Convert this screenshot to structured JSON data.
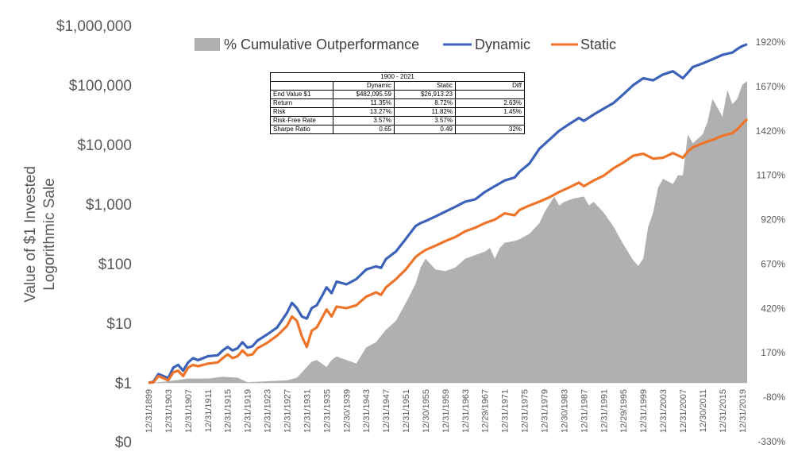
{
  "chart_data": {
    "type": "line",
    "ylabel": [
      "Value of $1 Invested",
      "Logorithmic Sale"
    ],
    "y_scale": "log",
    "ylim": [
      1,
      1000000
    ],
    "y_ticks": [
      "$1",
      "$10",
      "$100",
      "$1,000",
      "$10,000",
      "$100,000",
      "$1,000,000"
    ],
    "y_zero_tick": "$0",
    "y2_ticks": [
      "-330%",
      "-80%",
      "170%",
      "420%",
      "670%",
      "920%",
      "1170%",
      "1420%",
      "1670%",
      "1920%"
    ],
    "y2lim": [
      -330,
      1920
    ],
    "x_ticks": [
      "12/31/1899",
      "12/31/1903",
      "12/31/1907",
      "12/31/1911",
      "12/31/1915",
      "12/31/1919",
      "12/31/1923",
      "12/31/1927",
      "12/31/1931",
      "12/31/1935",
      "12/30/1939",
      "12/31/1943",
      "12/31/1947",
      "12/31/1951",
      "12/30/1955",
      "12/31/1959",
      "12/31/1963",
      "12/29/1967",
      "12/31/1971",
      "12/31/1975",
      "12/31/1979",
      "12/30/1983",
      "12/31/1987",
      "12/31/1991",
      "12/29/1995",
      "12/31/1999",
      "12/31/2003",
      "12/31/2007",
      "12/30/2011",
      "12/31/2015",
      "12/31/2019"
    ],
    "legend": {
      "position": "top"
    },
    "series": [
      {
        "name": "% Cumulative Outperformance",
        "type": "area",
        "axis": "right",
        "color": "#b0b0b0",
        "x": [
          1900,
          1904,
          1908,
          1912,
          1915,
          1918,
          1920,
          1924,
          1928,
          1930,
          1932,
          1933,
          1934,
          1935,
          1936,
          1937,
          1938,
          1940,
          1942,
          1944,
          1946,
          1948,
          1950,
          1952,
          1954,
          1955,
          1956,
          1958,
          1960,
          1962,
          1964,
          1966,
          1968,
          1969,
          1970,
          1971,
          1972,
          1974,
          1975,
          1977,
          1979,
          1980,
          1982,
          1983,
          1984,
          1986,
          1988,
          1989,
          1990,
          1992,
          1994,
          1996,
          1998,
          1999,
          2000,
          2001,
          2002,
          2003,
          2004,
          2006,
          2007,
          2008,
          2009,
          2010,
          2012,
          2013,
          2014,
          2016,
          2017,
          2018,
          2019,
          2020,
          2021
        ],
        "values": [
          0,
          10,
          25,
          25,
          35,
          30,
          5,
          10,
          15,
          30,
          90,
          120,
          130,
          110,
          90,
          130,
          150,
          130,
          110,
          200,
          230,
          300,
          350,
          450,
          560,
          650,
          700,
          640,
          630,
          650,
          700,
          720,
          740,
          760,
          700,
          760,
          790,
          800,
          810,
          840,
          900,
          960,
          1050,
          1000,
          1020,
          1040,
          1050,
          1000,
          1020,
          960,
          880,
          780,
          690,
          660,
          700,
          880,
          960,
          1100,
          1150,
          1120,
          1170,
          1170,
          1400,
          1350,
          1400,
          1470,
          1600,
          1500,
          1650,
          1570,
          1600,
          1680,
          1700
        ]
      },
      {
        "name": "Dynamic",
        "type": "line",
        "axis": "left",
        "color": "#3b62b8",
        "x": [
          1900,
          1901,
          1902,
          1903,
          1904,
          1905,
          1906,
          1907,
          1908,
          1909,
          1910,
          1912,
          1914,
          1915,
          1916,
          1917,
          1918,
          1919,
          1920,
          1921,
          1922,
          1924,
          1926,
          1928,
          1929,
          1930,
          1931,
          1932,
          1933,
          1934,
          1935,
          1936,
          1937,
          1938,
          1940,
          1942,
          1944,
          1946,
          1947,
          1948,
          1950,
          1952,
          1954,
          1955,
          1956,
          1958,
          1960,
          1962,
          1964,
          1966,
          1968,
          1970,
          1972,
          1974,
          1975,
          1977,
          1979,
          1981,
          1983,
          1985,
          1987,
          1988,
          1990,
          1992,
          1994,
          1996,
          1998,
          2000,
          2002,
          2004,
          2006,
          2008,
          2009,
          2010,
          2012,
          2014,
          2016,
          2018,
          2019,
          2020,
          2021
        ],
        "values": [
          1,
          1.05,
          1.4,
          1.3,
          1.2,
          1.8,
          2.0,
          1.6,
          2.2,
          2.6,
          2.4,
          2.8,
          2.9,
          3.5,
          4.0,
          3.5,
          3.8,
          4.8,
          3.9,
          4.1,
          5.1,
          6.5,
          8.5,
          15,
          22,
          18,
          13,
          12,
          18,
          20,
          28,
          40,
          32,
          50,
          45,
          55,
          80,
          90,
          85,
          120,
          160,
          260,
          430,
          480,
          520,
          620,
          750,
          900,
          1100,
          1200,
          1600,
          2000,
          2500,
          2800,
          3500,
          4800,
          8500,
          12000,
          17000,
          22000,
          28000,
          25000,
          32000,
          40000,
          50000,
          70000,
          100000,
          130000,
          120000,
          150000,
          170000,
          130000,
          160000,
          200000,
          230000,
          270000,
          320000,
          350000,
          400000,
          450000,
          482095.59
        ]
      },
      {
        "name": "Static",
        "type": "line",
        "axis": "left",
        "color": "#ed7428",
        "x": [
          1900,
          1901,
          1902,
          1903,
          1904,
          1905,
          1906,
          1907,
          1908,
          1909,
          1910,
          1912,
          1914,
          1915,
          1916,
          1917,
          1918,
          1919,
          1920,
          1921,
          1922,
          1924,
          1926,
          1928,
          1929,
          1930,
          1931,
          1932,
          1933,
          1934,
          1935,
          1936,
          1937,
          1938,
          1940,
          1942,
          1944,
          1946,
          1947,
          1948,
          1950,
          1952,
          1954,
          1955,
          1956,
          1958,
          1960,
          1962,
          1964,
          1966,
          1968,
          1970,
          1972,
          1974,
          1975,
          1977,
          1979,
          1981,
          1983,
          1985,
          1987,
          1988,
          1990,
          1992,
          1994,
          1996,
          1998,
          2000,
          2002,
          2004,
          2006,
          2008,
          2009,
          2010,
          2012,
          2014,
          2016,
          2018,
          2019,
          2020,
          2021
        ],
        "values": [
          1,
          1.02,
          1.3,
          1.2,
          1.1,
          1.5,
          1.6,
          1.3,
          1.8,
          2.0,
          1.9,
          2.1,
          2.2,
          2.6,
          3.0,
          2.6,
          2.8,
          3.5,
          2.9,
          3.0,
          3.8,
          4.7,
          6.2,
          9,
          13,
          11,
          6,
          4,
          7.5,
          8.5,
          12,
          17,
          13,
          19,
          18,
          20,
          28,
          33,
          30,
          40,
          55,
          80,
          130,
          150,
          170,
          200,
          240,
          280,
          350,
          400,
          480,
          550,
          700,
          650,
          800,
          950,
          1100,
          1300,
          1600,
          1900,
          2300,
          2000,
          2500,
          3000,
          4000,
          5000,
          6500,
          7000,
          5800,
          6000,
          7200,
          6000,
          7600,
          9000,
          10500,
          12000,
          14000,
          15500,
          18000,
          22000,
          26913.23
        ]
      }
    ],
    "table": {
      "period": "1900 - 2021",
      "columns": [
        "",
        "Dynamic",
        "Static",
        "Diff"
      ],
      "rows": [
        [
          "End Value $1",
          "$482,095.59",
          "$26,913.23",
          ""
        ],
        [
          "Return",
          "11.35%",
          "8.72%",
          "2.63%"
        ],
        [
          "Risk",
          "13.27%",
          "11.82%",
          "1.45%"
        ],
        [
          "Risk-Free Rate",
          "3.57%",
          "3.57%",
          ""
        ],
        [
          "Sharpe Ratio",
          "0.65",
          "0.49",
          "32%"
        ]
      ]
    }
  }
}
